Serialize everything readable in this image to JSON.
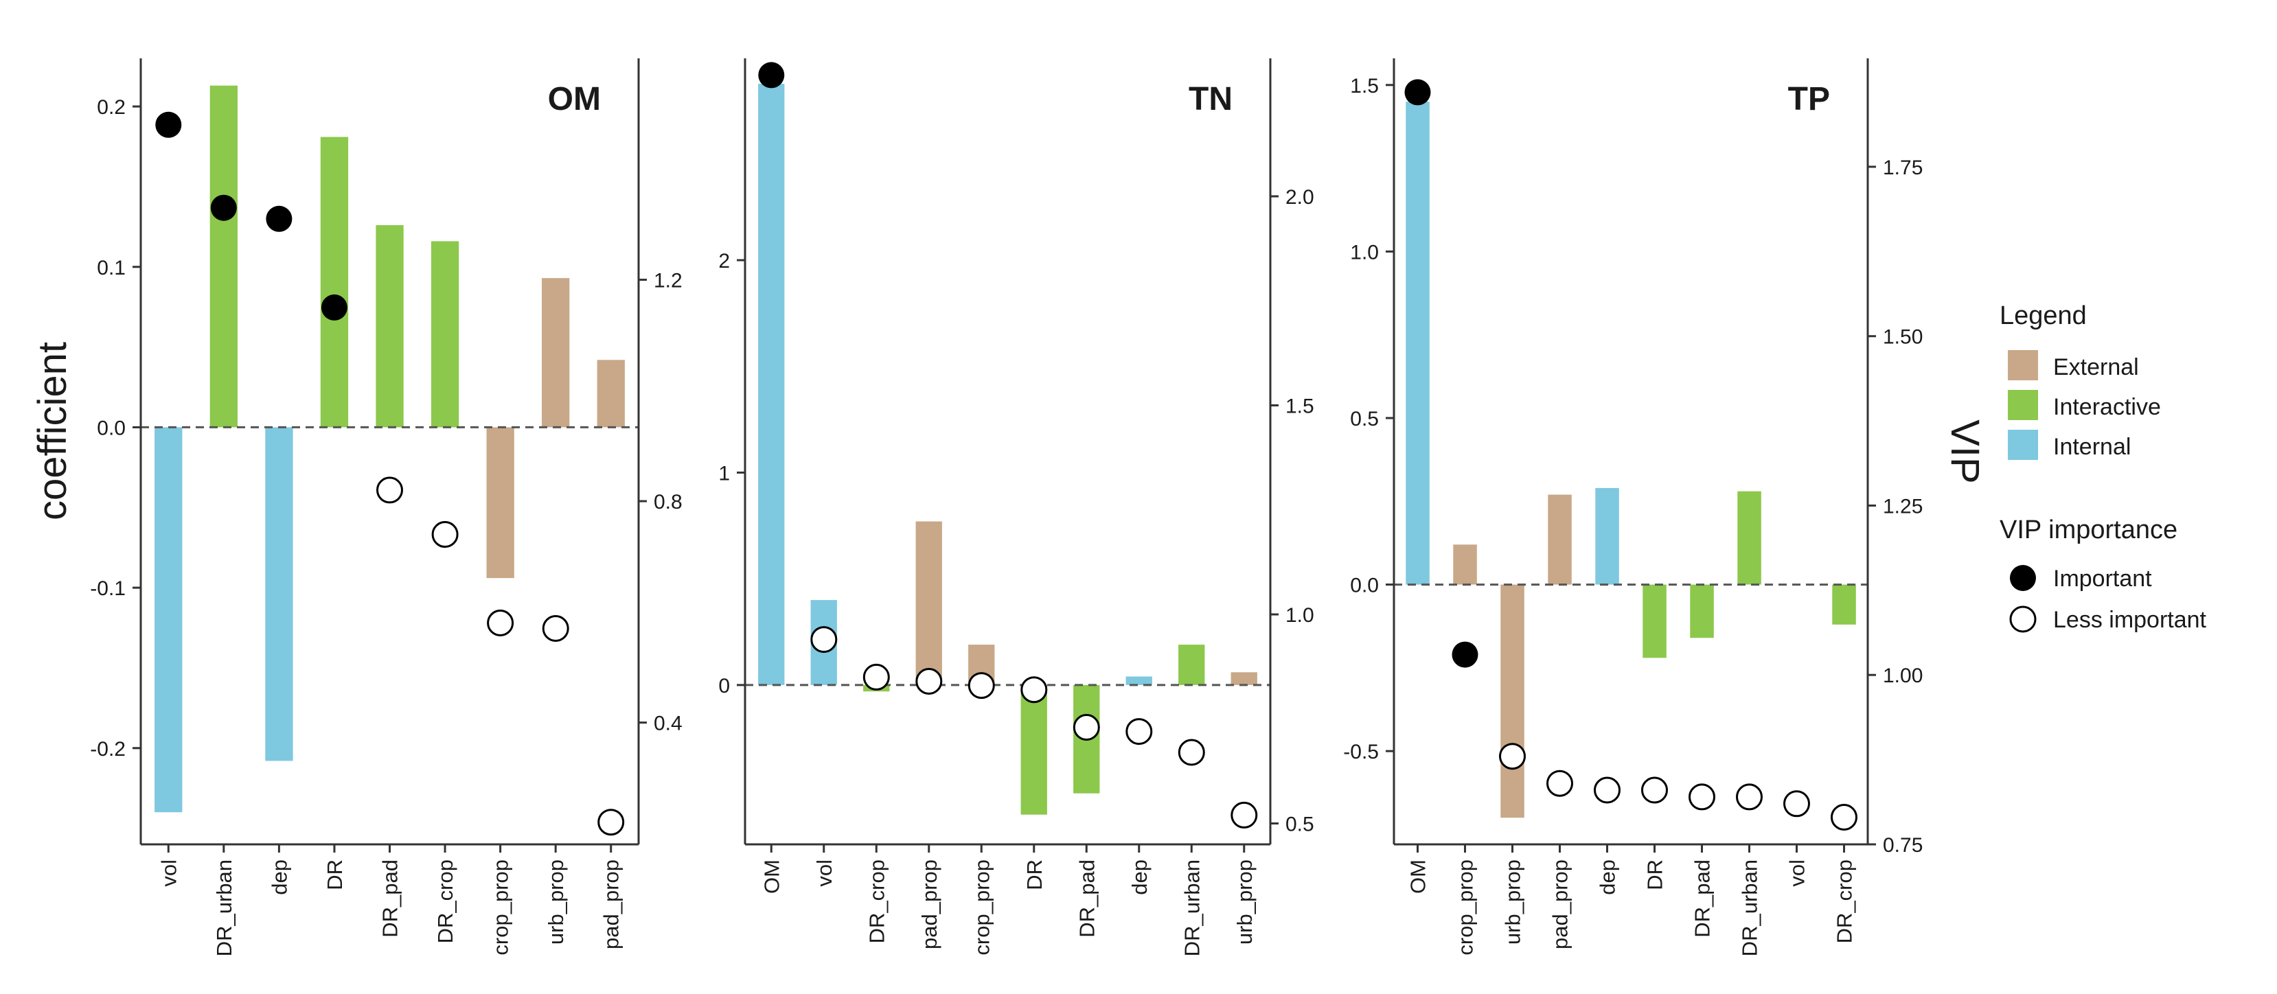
{
  "chart_data": {
    "type": "bar",
    "ylabel": "coefficient",
    "y2label": "VIP",
    "panels": [
      {
        "title": "OM",
        "categories": [
          "vol",
          "DR_urban",
          "dep",
          "DR",
          "DR_pad",
          "DR_crop",
          "crop_prop",
          "urb_prop",
          "pad_prop"
        ],
        "groups": [
          "Internal",
          "Interactive",
          "Internal",
          "Interactive",
          "Interactive",
          "Interactive",
          "External",
          "External",
          "External"
        ],
        "coefficients": [
          -0.24,
          0.213,
          -0.208,
          0.181,
          0.126,
          0.116,
          -0.094,
          0.093,
          0.042
        ],
        "vip": [
          1.48,
          1.33,
          1.31,
          1.15,
          0.82,
          0.74,
          0.58,
          0.57,
          0.22
        ],
        "important": [
          true,
          true,
          true,
          true,
          false,
          false,
          false,
          false,
          false
        ],
        "ylim": [
          -0.26,
          0.23
        ],
        "yticks": [
          -0.2,
          -0.1,
          0.0,
          0.1,
          0.2
        ],
        "ytick_labels": [
          "-0.2",
          "-0.1",
          "0.0",
          "0.1",
          "0.2"
        ],
        "y2lim": [
          0.18,
          1.6
        ],
        "y2ticks": [
          0.4,
          0.8,
          1.2
        ],
        "y2tick_labels": [
          "0.4",
          "0.8",
          "1.2"
        ]
      },
      {
        "title": "TN",
        "categories": [
          "OM",
          "vol",
          "DR_crop",
          "pad_prop",
          "crop_prop",
          "DR",
          "DR_pad",
          "dep",
          "DR_urban",
          "urb_prop"
        ],
        "groups": [
          "Internal",
          "Internal",
          "Interactive",
          "External",
          "External",
          "Interactive",
          "Interactive",
          "Internal",
          "Interactive",
          "External"
        ],
        "coefficients": [
          2.83,
          0.4,
          -0.03,
          0.77,
          0.19,
          -0.61,
          -0.51,
          0.04,
          0.19,
          0.06
        ],
        "vip": [
          2.29,
          0.94,
          0.85,
          0.84,
          0.83,
          0.82,
          0.73,
          0.72,
          0.67,
          0.52
        ],
        "important": [
          true,
          false,
          false,
          false,
          false,
          false,
          false,
          false,
          false,
          false
        ],
        "ylim": [
          -0.75,
          2.95
        ],
        "yticks": [
          0,
          1,
          2
        ],
        "ytick_labels": [
          "0",
          "1",
          "2"
        ],
        "y2lim": [
          0.45,
          2.33
        ],
        "y2ticks": [
          0.5,
          1.0,
          1.5,
          2.0
        ],
        "y2tick_labels": [
          "0.5",
          "1.0",
          "1.5",
          "2.0"
        ]
      },
      {
        "title": "TP",
        "categories": [
          "OM",
          "crop_prop",
          "urb_prop",
          "pad_prop",
          "dep",
          "DR",
          "DR_pad",
          "DR_urban",
          "vol",
          "DR_crop"
        ],
        "groups": [
          "Internal",
          "External",
          "External",
          "External",
          "Internal",
          "Interactive",
          "Interactive",
          "Interactive",
          "Internal",
          "Interactive"
        ],
        "coefficients": [
          1.45,
          0.12,
          -0.7,
          0.27,
          0.29,
          -0.22,
          -0.16,
          0.28,
          0,
          -0.12
        ],
        "vip": [
          1.86,
          1.03,
          0.88,
          0.84,
          0.83,
          0.83,
          0.82,
          0.82,
          0.81,
          0.79
        ],
        "important": [
          true,
          true,
          false,
          false,
          false,
          false,
          false,
          false,
          false,
          false
        ],
        "ylim": [
          -0.78,
          1.58
        ],
        "yticks": [
          -0.5,
          0.0,
          0.5,
          1.0,
          1.5
        ],
        "ytick_labels": [
          "-0.5",
          "0.0",
          "0.5",
          "1.0",
          "1.5"
        ],
        "y2lim": [
          0.75,
          1.91
        ],
        "y2ticks": [
          0.75,
          1.0,
          1.25,
          1.5,
          1.75
        ],
        "y2tick_labels": [
          "0.75",
          "1.00",
          "1.25",
          "1.50",
          "1.75"
        ]
      }
    ]
  },
  "legend": {
    "title": "Legend",
    "items": [
      {
        "label": "External",
        "group": "External"
      },
      {
        "label": "Interactive",
        "group": "Interactive"
      },
      {
        "label": "Internal",
        "group": "Internal"
      }
    ],
    "vip_title": "VIP importance",
    "vip_items": [
      {
        "label": "Important",
        "filled": true
      },
      {
        "label": "Less important",
        "filled": false
      }
    ]
  },
  "colors": {
    "External": "#c8a888",
    "Interactive": "#8cc84b",
    "Internal": "#7ec8e0",
    "axis": "#333333",
    "zero_line": "#555555"
  }
}
